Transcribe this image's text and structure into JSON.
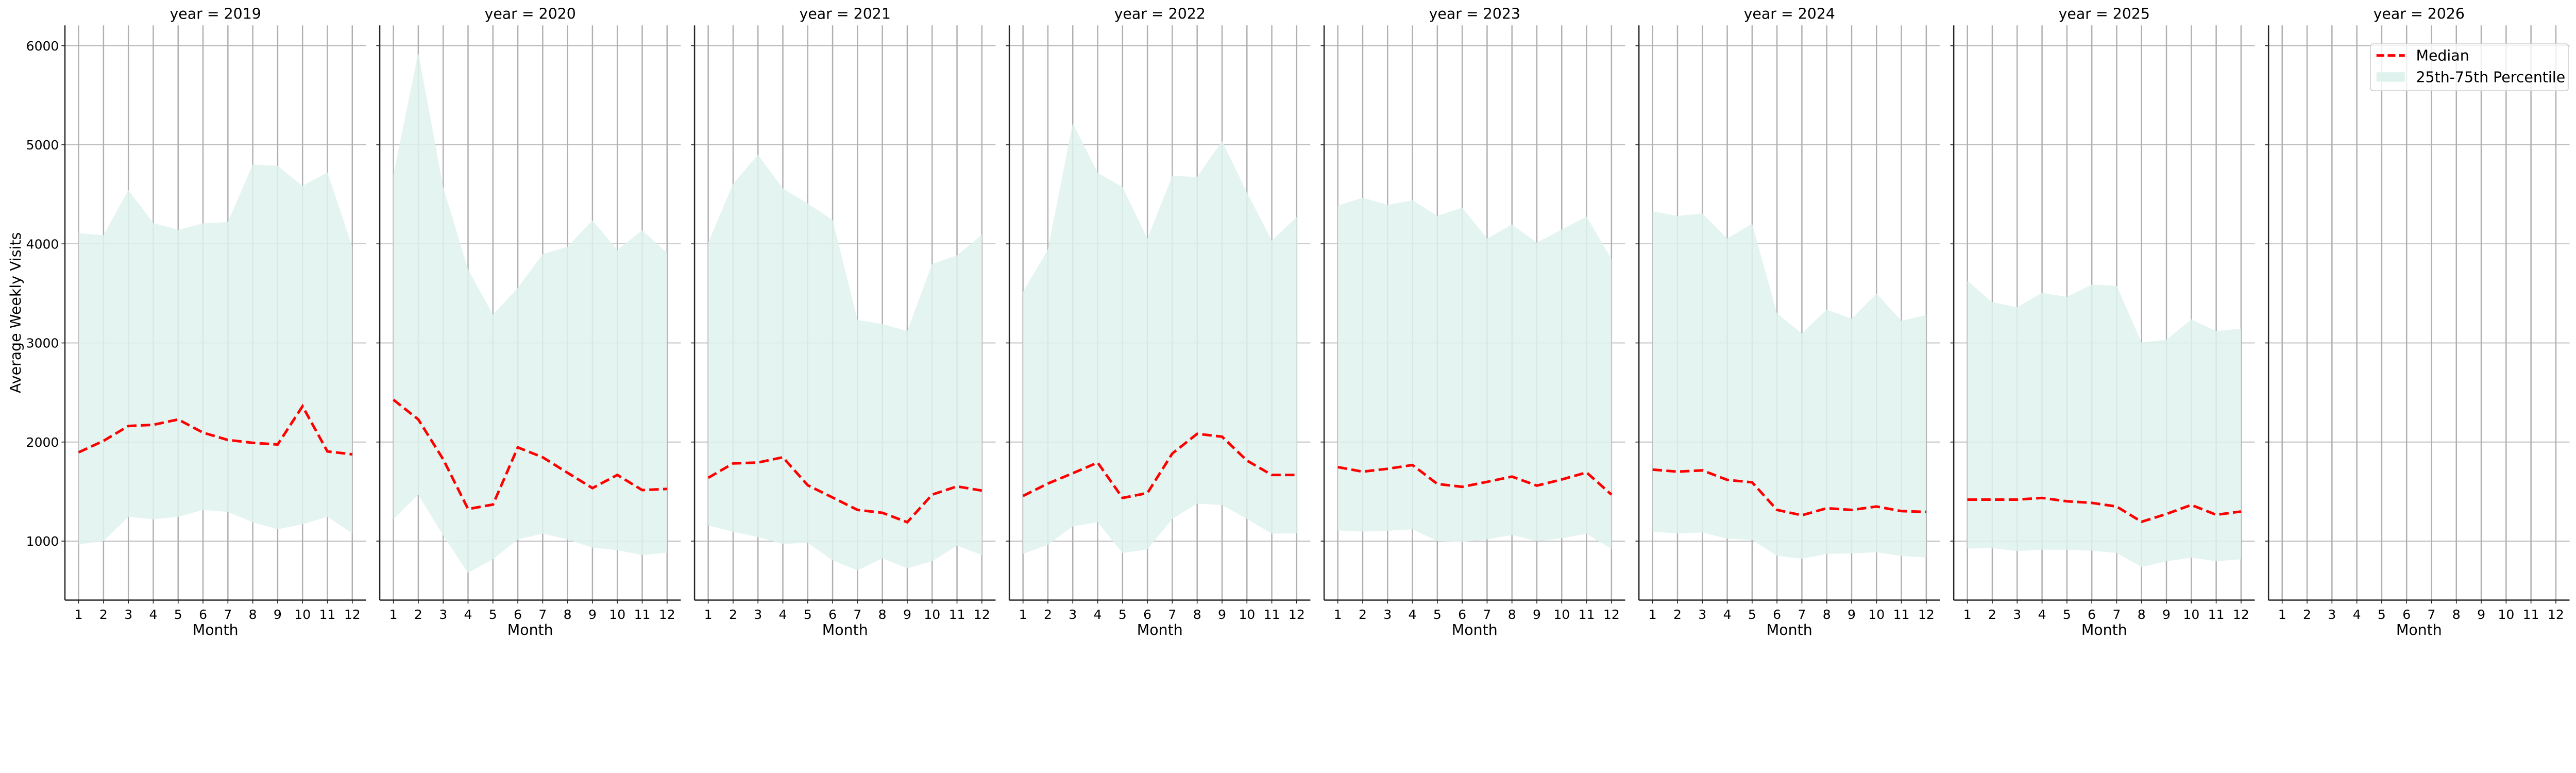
{
  "chart_data": {
    "type": "line",
    "facet_title_prefix": "year = ",
    "xlabel": "Month",
    "ylabel": "Average Weekly Visits",
    "x": [
      1,
      2,
      3,
      4,
      5,
      6,
      7,
      8,
      9,
      10,
      11,
      12
    ],
    "xticks": [
      "1",
      "2",
      "3",
      "4",
      "5",
      "6",
      "7",
      "8",
      "9",
      "10",
      "11",
      "12"
    ],
    "yticks": [
      1000,
      2000,
      3000,
      4000,
      5000,
      6000
    ],
    "ylim": [
      405,
      6205
    ],
    "xlim": [
      0.45,
      12.55
    ],
    "grid": true,
    "legend": {
      "placement": "top-right",
      "entries": [
        {
          "label": "Median",
          "style": "dashed-line",
          "color": "#ff0000"
        },
        {
          "label": "25th-75th Percentile",
          "style": "band",
          "color": "#dff2ed"
        }
      ]
    },
    "colors": {
      "median": "#ff0000",
      "band": "#dff2ed",
      "grid": "#b0b0b0",
      "axis": "#262626"
    },
    "facets": [
      {
        "year": "2019",
        "median": [
          1896,
          2012,
          2162,
          2174,
          2228,
          2095,
          2021,
          1992,
          1975,
          2361,
          1905,
          1876
        ],
        "p25": [
          967,
          1000,
          1245,
          1220,
          1245,
          1315,
          1295,
          1190,
          1120,
          1170,
          1245,
          1079
        ],
        "p75": [
          4108,
          4087,
          4544,
          4212,
          4141,
          4207,
          4220,
          4801,
          4788,
          4585,
          4722,
          3971
        ]
      },
      {
        "year": "2020",
        "median": [
          2427,
          2228,
          1826,
          1324,
          1369,
          1946,
          1846,
          1689,
          1535,
          1668,
          1515,
          1527
        ],
        "p25": [
          1224,
          1469,
          1058,
          680,
          817,
          1017,
          1075,
          1017,
          934,
          909,
          859,
          884
        ],
        "p75": [
          4697,
          5929,
          4573,
          3743,
          3286,
          3556,
          3896,
          3971,
          4237,
          3938,
          4137,
          3909
        ]
      },
      {
        "year": "2021",
        "median": [
          1639,
          1784,
          1793,
          1846,
          1564,
          1440,
          1315,
          1286,
          1191,
          1469,
          1552,
          1510
        ],
        "p25": [
          1158,
          1095,
          1041,
          971,
          983,
          805,
          705,
          826,
          726,
          797,
          954,
          859
        ],
        "p75": [
          4012,
          4606,
          4900,
          4560,
          4407,
          4241,
          3232,
          3191,
          3120,
          3797,
          3884,
          4095
        ]
      },
      {
        "year": "2022",
        "median": [
          1456,
          1581,
          1685,
          1793,
          1436,
          1485,
          1884,
          2083,
          2054,
          1813,
          1668,
          1668
        ],
        "p25": [
          871,
          963,
          1149,
          1191,
          880,
          917,
          1224,
          1378,
          1365,
          1224,
          1075,
          1079
        ],
        "p75": [
          3515,
          3942,
          5216,
          4718,
          4573,
          4054,
          4685,
          4676,
          5037,
          4519,
          4033,
          4270
        ]
      },
      {
        "year": "2023",
        "median": [
          1747,
          1701,
          1730,
          1768,
          1577,
          1548,
          1598,
          1651,
          1560,
          1622,
          1693,
          1469
        ],
        "p25": [
          1108,
          1095,
          1104,
          1120,
          1000,
          992,
          1017,
          1062,
          1000,
          1029,
          1075,
          921
        ],
        "p75": [
          4386,
          4465,
          4394,
          4440,
          4282,
          4365,
          4054,
          4195,
          4012,
          4145,
          4274,
          3846
        ]
      },
      {
        "year": "2024",
        "median": [
          1722,
          1701,
          1714,
          1618,
          1593,
          1315,
          1261,
          1332,
          1315,
          1349,
          1303,
          1295
        ],
        "p25": [
          1095,
          1079,
          1087,
          1025,
          1012,
          851,
          822,
          871,
          876,
          888,
          851,
          834
        ],
        "p75": [
          4328,
          4282,
          4307,
          4054,
          4203,
          3299,
          3095,
          3336,
          3245,
          3498,
          3224,
          3282
        ]
      },
      {
        "year": "2025",
        "median": [
          1419,
          1419,
          1419,
          1436,
          1402,
          1386,
          1349,
          1195,
          1274,
          1365,
          1266,
          1299
        ],
        "p25": [
          925,
          929,
          900,
          913,
          913,
          904,
          880,
          739,
          797,
          834,
          797,
          817
        ],
        "p75": [
          3627,
          3411,
          3361,
          3506,
          3465,
          3589,
          3577,
          3004,
          3033,
          3237,
          3120,
          3145
        ]
      },
      {
        "year": "2026",
        "median": [],
        "p25": [],
        "p75": []
      }
    ]
  }
}
